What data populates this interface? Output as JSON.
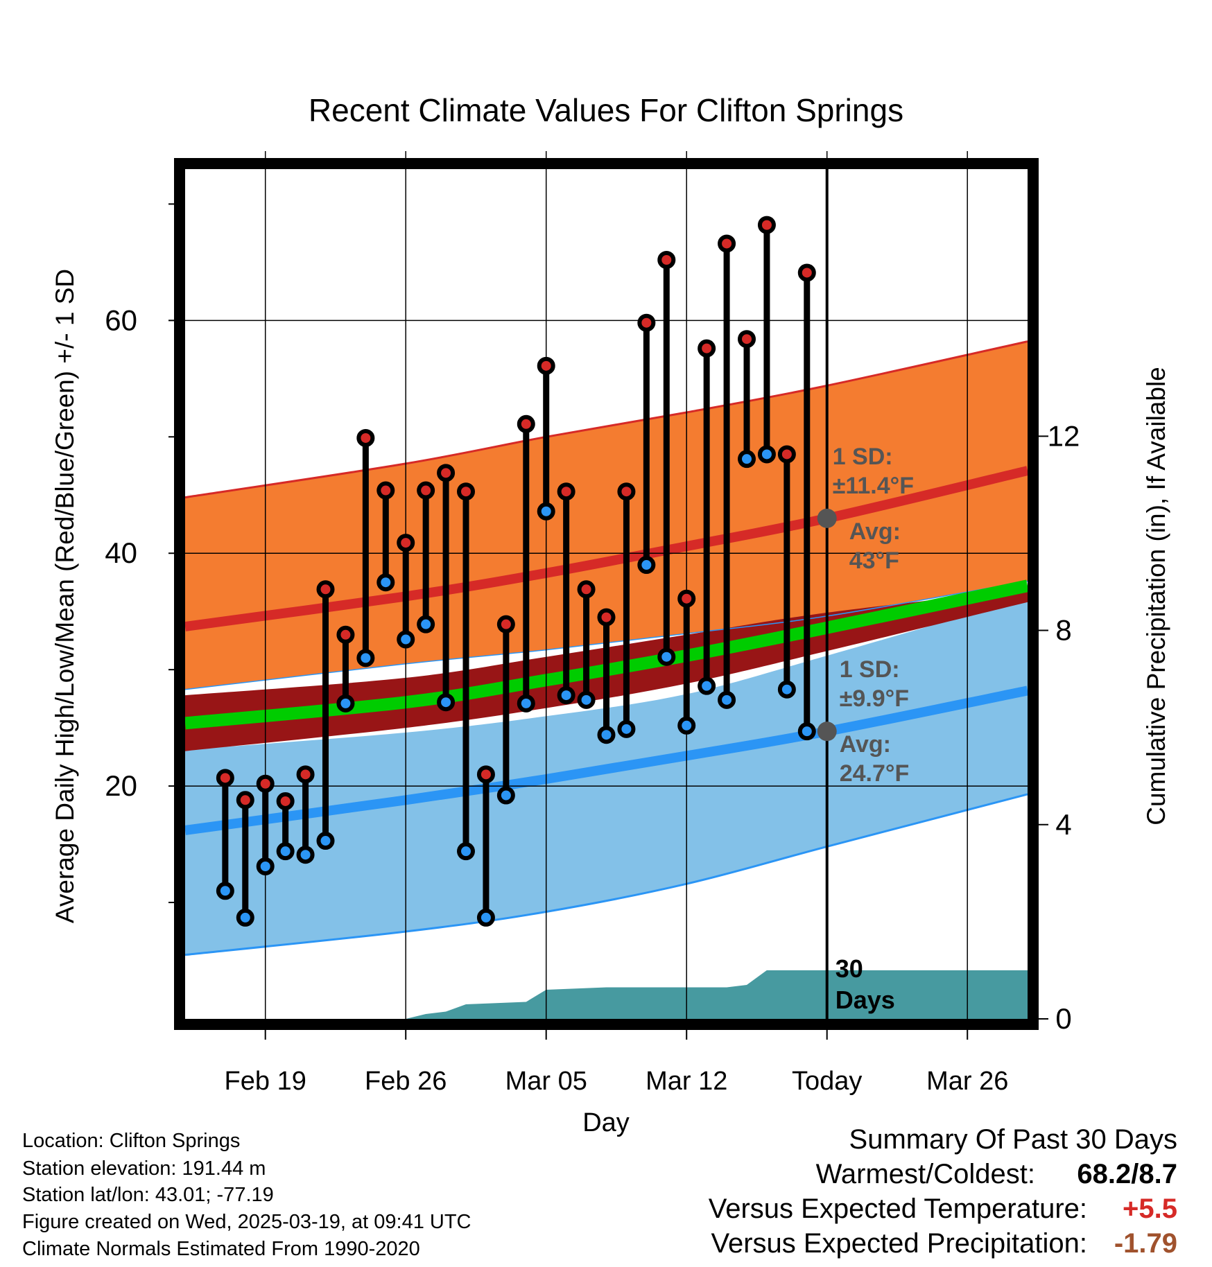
{
  "chart_data": {
    "type": "line",
    "title": "Recent Climate Values For Clifton Springs",
    "xlabel": "Day",
    "ylabel": "Average Daily High/Low/Mean (Red/Blue/Green) +/- 1 SD",
    "y2label": "Cumulative Precipitation (in), If Available",
    "ylim": [
      0,
      73
    ],
    "y2lim": [
      0,
      17.5
    ],
    "yticks": [
      20,
      40,
      60
    ],
    "y2ticks": [
      0,
      4,
      8,
      12
    ],
    "xlim": [
      "2025-02-15",
      "2025-03-29"
    ],
    "xtick_labels": [
      {
        "date": "2025-02-19",
        "label": "Feb 19"
      },
      {
        "date": "2025-02-26",
        "label": "Feb 26"
      },
      {
        "date": "2025-03-05",
        "label": "Mar 05"
      },
      {
        "date": "2025-03-12",
        "label": "Mar 12"
      },
      {
        "date": "2025-03-19",
        "label": "Today"
      },
      {
        "date": "2025-03-26",
        "label": "Mar 26"
      }
    ],
    "today": "2025-03-19",
    "today_label": [
      "30",
      "Days"
    ],
    "daily_observations": [
      {
        "date": "2025-02-17",
        "high": 20.7,
        "low": 11.0
      },
      {
        "date": "2025-02-18",
        "high": 18.8,
        "low": 8.7
      },
      {
        "date": "2025-02-19",
        "high": 20.2,
        "low": 13.1
      },
      {
        "date": "2025-02-20",
        "high": 18.7,
        "low": 14.4
      },
      {
        "date": "2025-02-21",
        "high": 21.0,
        "low": 14.1
      },
      {
        "date": "2025-02-22",
        "high": 36.9,
        "low": 15.3
      },
      {
        "date": "2025-02-23",
        "high": 33.0,
        "low": 27.1
      },
      {
        "date": "2025-02-24",
        "high": 49.9,
        "low": 31.0
      },
      {
        "date": "2025-02-25",
        "high": 45.4,
        "low": 37.5
      },
      {
        "date": "2025-02-26",
        "high": 40.9,
        "low": 32.6
      },
      {
        "date": "2025-02-27",
        "high": 45.4,
        "low": 33.9
      },
      {
        "date": "2025-02-28",
        "high": 46.9,
        "low": 27.2
      },
      {
        "date": "2025-03-01",
        "high": 45.3,
        "low": 14.4
      },
      {
        "date": "2025-03-02",
        "high": 21.0,
        "low": 8.7
      },
      {
        "date": "2025-03-03",
        "high": 33.9,
        "low": 19.2
      },
      {
        "date": "2025-03-04",
        "high": 51.1,
        "low": 27.1
      },
      {
        "date": "2025-03-05",
        "high": 56.1,
        "low": 43.6
      },
      {
        "date": "2025-03-06",
        "high": 45.3,
        "low": 27.8
      },
      {
        "date": "2025-03-07",
        "high": 36.9,
        "low": 27.4
      },
      {
        "date": "2025-03-08",
        "high": 34.5,
        "low": 24.4
      },
      {
        "date": "2025-03-09",
        "high": 45.3,
        "low": 24.9
      },
      {
        "date": "2025-03-10",
        "high": 59.8,
        "low": 39.0
      },
      {
        "date": "2025-03-11",
        "high": 65.2,
        "low": 31.1
      },
      {
        "date": "2025-03-12",
        "high": 36.1,
        "low": 25.2
      },
      {
        "date": "2025-03-13",
        "high": 57.6,
        "low": 28.6
      },
      {
        "date": "2025-03-14",
        "high": 66.6,
        "low": 27.4
      },
      {
        "date": "2025-03-15",
        "high": 58.4,
        "low": 48.1
      },
      {
        "date": "2025-03-16",
        "high": 68.2,
        "low": 48.5
      },
      {
        "date": "2025-03-17",
        "high": 48.5,
        "low": 28.3
      },
      {
        "date": "2025-03-18",
        "high": 64.1,
        "low": 24.7
      }
    ],
    "normals": {
      "dates": [
        "2025-02-15",
        "2025-02-26",
        "2025-03-05",
        "2025-03-12",
        "2025-03-19",
        "2025-03-29"
      ],
      "high_mean": [
        33.7,
        36.3,
        38.3,
        40.6,
        43.0,
        47.1
      ],
      "high_sd_upper": [
        44.8,
        47.7,
        50.0,
        52.1,
        54.4,
        58.2
      ],
      "high_sd_lower": [
        28.3,
        30.5,
        31.7,
        33.1,
        34.6,
        37.6
      ],
      "mean": [
        25.4,
        27.2,
        29.1,
        31.2,
        33.6,
        37.2
      ],
      "mean_sd_upper": [
        27.8,
        29.3,
        31.1,
        33.0,
        34.9,
        36.9
      ],
      "mean_sd_lower": [
        23.0,
        25.0,
        26.7,
        28.8,
        31.6,
        35.8
      ],
      "low_mean": [
        16.2,
        18.8,
        20.6,
        22.6,
        24.7,
        28.2
      ],
      "low_sd_upper": [
        23.1,
        24.6,
        26.0,
        27.9,
        31.2,
        36.2
      ],
      "low_sd_lower": [
        5.5,
        7.5,
        9.2,
        11.6,
        14.8,
        19.3
      ]
    },
    "precipitation_cumulative": {
      "dates": [
        "2025-02-15",
        "2025-02-26",
        "2025-02-27",
        "2025-02-28",
        "2025-03-01",
        "2025-03-04",
        "2025-03-05",
        "2025-03-08",
        "2025-03-14",
        "2025-03-15",
        "2025-03-16",
        "2025-03-29"
      ],
      "values": [
        0.0,
        0.0,
        0.1,
        0.15,
        0.3,
        0.35,
        0.6,
        0.65,
        0.65,
        0.7,
        1.0,
        1.0
      ]
    },
    "annotations": [
      {
        "label_lines": [
          "1 SD:",
          "±11.4°F"
        ],
        "series": "high"
      },
      {
        "label_lines": [
          "Avg:",
          "43°F"
        ],
        "series": "high"
      },
      {
        "label_lines": [
          "1 SD:",
          "±9.9°F"
        ],
        "series": "low"
      },
      {
        "label_lines": [
          "Avg:",
          "24.7°F"
        ],
        "series": "low"
      }
    ],
    "annotation_anchors": [
      {
        "date": "2025-03-19",
        "value": 43.0
      },
      {
        "date": "2025-03-19",
        "value": 24.7
      }
    ],
    "colors": {
      "high_band": "#F47C30",
      "high_line": "#D62A27",
      "mean_band": "#981516",
      "mean_line": "#00CC00",
      "low_band": "#83C1E8",
      "low_line": "#2B95F5",
      "precip": "#479AA0",
      "high_marker": "#D62A27",
      "low_marker": "#2B95F5",
      "annotation_text": "#555555"
    },
    "grid": true
  },
  "footer": {
    "location": "Location: Clifton Springs",
    "elevation": "Station elevation: 191.44 m",
    "latlon": "Station lat/lon: 43.01; -77.19",
    "created": "Figure created on Wed, 2025-03-19, at 09:41 UTC",
    "normals": "Climate Normals Estimated From 1990-2020"
  },
  "summary": {
    "title": "Summary Of Past 30 Days",
    "warm_cold_label": "Warmest/Coldest:",
    "warm_cold_value": "68.2/8.7",
    "temp_label": "Versus Expected Temperature:",
    "temp_value": "+5.5",
    "temp_color": "#D62A27",
    "precip_label": "Versus Expected Precipitation:",
    "precip_value": "-1.79",
    "precip_color": "#A0522D"
  }
}
